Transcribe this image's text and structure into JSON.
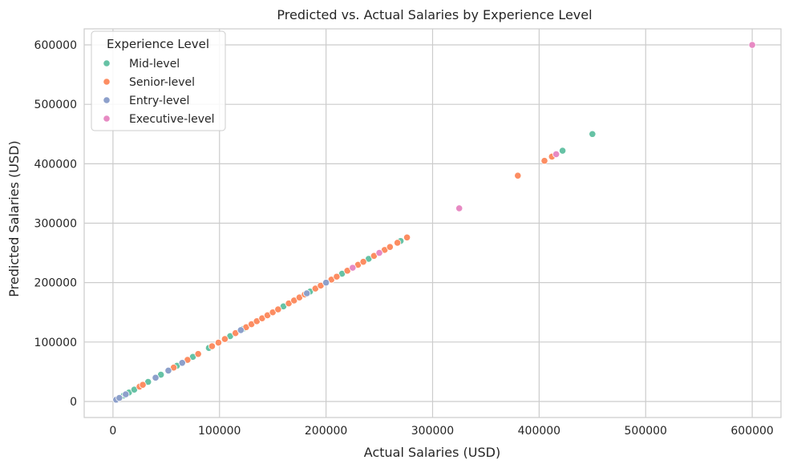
{
  "chart_data": {
    "type": "scatter",
    "title": "Predicted vs. Actual Salaries by Experience Level",
    "xlabel": "Actual Salaries (USD)",
    "ylabel": "Predicted Salaries (USD)",
    "xlim": [
      -27000,
      627000
    ],
    "ylim": [
      -27000,
      627000
    ],
    "xticks": [
      "0",
      "100000",
      "200000",
      "300000",
      "400000",
      "500000",
      "600000"
    ],
    "yticks": [
      "0",
      "100000",
      "200000",
      "300000",
      "400000",
      "500000",
      "600000"
    ],
    "grid": true,
    "legend": {
      "title": "Experience Level",
      "placement": "top-left"
    },
    "series": [
      {
        "name": "Mid-level",
        "color": "#66c2a5",
        "points": [
          [
            10000,
            10000
          ],
          [
            15000,
            15000
          ],
          [
            20000,
            20000
          ],
          [
            33000,
            33000
          ],
          [
            45000,
            45000
          ],
          [
            60000,
            60000
          ],
          [
            75000,
            75000
          ],
          [
            90000,
            90000
          ],
          [
            110000,
            110000
          ],
          [
            122000,
            122000
          ],
          [
            150000,
            150000
          ],
          [
            160000,
            160000
          ],
          [
            185000,
            185000
          ],
          [
            215000,
            215000
          ],
          [
            240000,
            240000
          ],
          [
            270000,
            270000
          ],
          [
            422000,
            422000
          ],
          [
            450000,
            450000
          ]
        ]
      },
      {
        "name": "Senior-level",
        "color": "#fc8d62",
        "points": [
          [
            25000,
            25000
          ],
          [
            28000,
            28000
          ],
          [
            57000,
            57000
          ],
          [
            70000,
            70000
          ],
          [
            80000,
            80000
          ],
          [
            93000,
            93000
          ],
          [
            99000,
            99000
          ],
          [
            105000,
            105000
          ],
          [
            115000,
            115000
          ],
          [
            125000,
            125000
          ],
          [
            130000,
            130000
          ],
          [
            135000,
            135000
          ],
          [
            140000,
            140000
          ],
          [
            145000,
            145000
          ],
          [
            150000,
            150000
          ],
          [
            155000,
            155000
          ],
          [
            165000,
            165000
          ],
          [
            170000,
            170000
          ],
          [
            175000,
            175000
          ],
          [
            180000,
            180000
          ],
          [
            190000,
            190000
          ],
          [
            195000,
            195000
          ],
          [
            205000,
            205000
          ],
          [
            210000,
            210000
          ],
          [
            220000,
            220000
          ],
          [
            230000,
            230000
          ],
          [
            235000,
            235000
          ],
          [
            245000,
            245000
          ],
          [
            255000,
            255000
          ],
          [
            260000,
            260000
          ],
          [
            267000,
            267000
          ],
          [
            276000,
            276000
          ],
          [
            380000,
            380000
          ],
          [
            405000,
            405000
          ],
          [
            412000,
            412000
          ]
        ]
      },
      {
        "name": "Entry-level",
        "color": "#8da0cb",
        "points": [
          [
            3000,
            3000
          ],
          [
            6000,
            6000
          ],
          [
            12000,
            12000
          ],
          [
            40000,
            40000
          ],
          [
            52000,
            52000
          ],
          [
            65000,
            65000
          ],
          [
            120000,
            120000
          ],
          [
            182000,
            182000
          ],
          [
            200000,
            200000
          ]
        ]
      },
      {
        "name": "Executive-level",
        "color": "#e78ac3",
        "points": [
          [
            225000,
            225000
          ],
          [
            250000,
            250000
          ],
          [
            325000,
            325000
          ],
          [
            416000,
            416000
          ],
          [
            600000,
            600000
          ]
        ]
      }
    ]
  }
}
